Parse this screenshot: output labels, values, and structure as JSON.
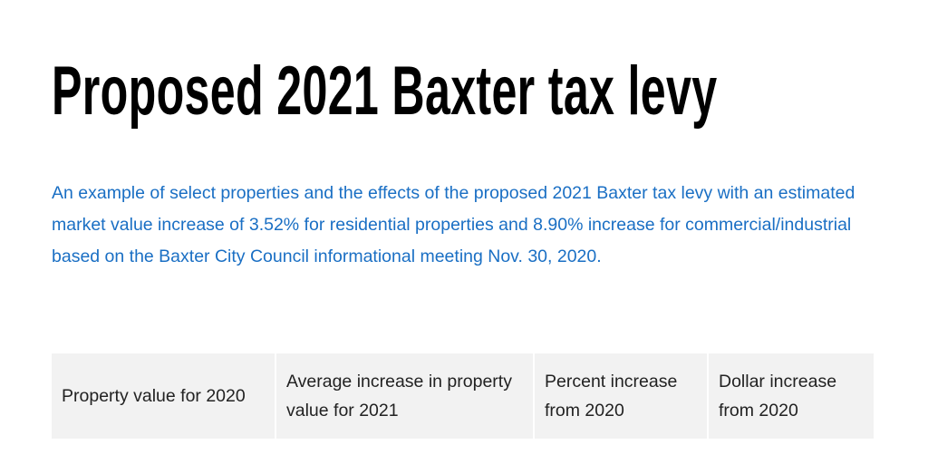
{
  "header": {
    "title": "Proposed 2021 Baxter tax levy"
  },
  "description": "An example of select properties and the effects of the proposed 2021 Baxter tax levy with an estimated market value increase of 3.52% for residential properties and 8.90% increase for commercial/industrial based on the Baxter City Council informational meeting Nov. 30, 2020.",
  "table": {
    "headers": [
      "Property value for 2020",
      "Average increase in property value for 2021",
      "Percent increase from 2020",
      "Dollar increase from 2020"
    ]
  }
}
